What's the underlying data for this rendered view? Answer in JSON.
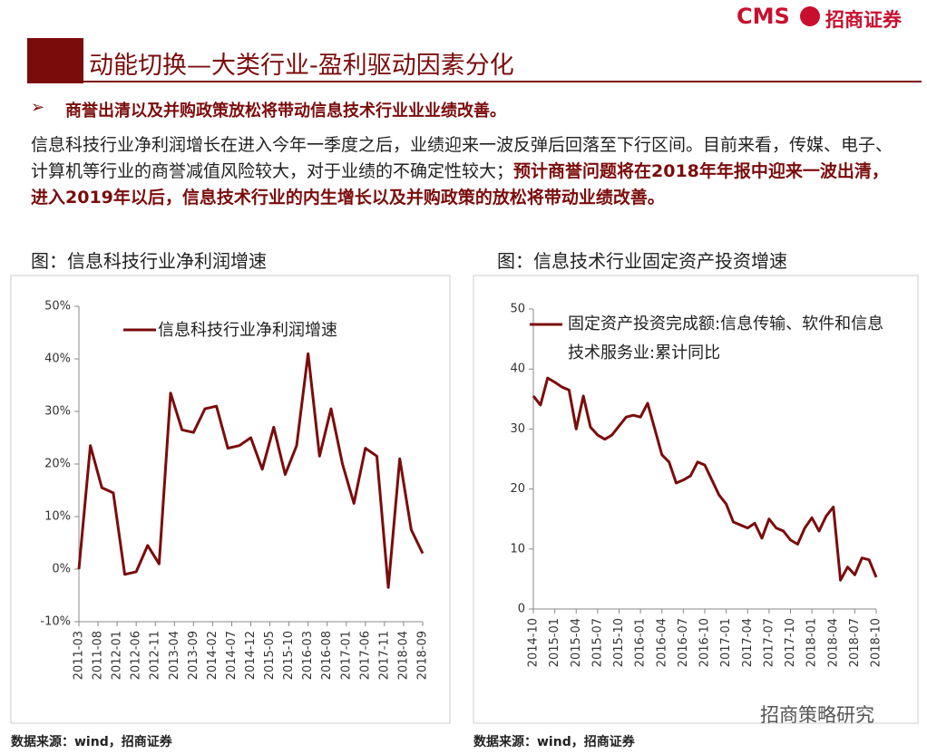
{
  "logo": {
    "mark": "CMS",
    "name": "招商证券"
  },
  "header": {
    "title": "动能切换—大类行业-盈利驱动因素分化"
  },
  "bullet": "商誉出清以及并购政策放松将带动信息技术行业业业绩改善。",
  "paragraph": {
    "normal": "信息科技行业净利润增长在进入今年一季度之后，业绩迎来一波反弹后回落至下行区间。目前来看，传媒、电子、计算机等行业的商誉减值风险较大，对于业绩的不确定性较大；",
    "bold": "预计商誉问题将在2018年年报中迎来一波出清，进入2019年以后，信息技术行业的内生增长以及并购政策的放松将带动业绩改善。"
  },
  "watermark": "招商策略研究",
  "chart_data": [
    {
      "type": "line",
      "caption": "图：信息科技行业净利润增速",
      "source": "数据来源：wind，招商证券",
      "x": [
        "2011-03",
        "2011-06",
        "2011-09",
        "2011-12",
        "2012-03",
        "2012-06",
        "2012-09",
        "2012-12",
        "2013-03",
        "2013-06",
        "2013-09",
        "2013-12",
        "2014-03",
        "2014-06",
        "2014-09",
        "2014-12",
        "2015-03",
        "2015-06",
        "2015-09",
        "2015-12",
        "2016-03",
        "2016-06",
        "2016-09",
        "2016-12",
        "2017-03",
        "2017-06",
        "2017-09",
        "2017-12",
        "2018-03",
        "2018-06",
        "2018-09"
      ],
      "series": [
        {
          "name": "信息科技行业净利润增速",
          "color": "#7b0c0c",
          "values": [
            0,
            23.5,
            15.5,
            14.5,
            -1,
            -0.5,
            4.5,
            1,
            33.5,
            26.5,
            26,
            30.5,
            31,
            23,
            23.5,
            25,
            19,
            27,
            18,
            23.5,
            41,
            21.5,
            30.5,
            20,
            12.5,
            23,
            21.5,
            -3.5,
            21,
            7.5,
            3
          ]
        }
      ],
      "xlim": [
        "2011-03",
        "2018-09"
      ],
      "xticks": [
        "2011-03",
        "2011-08",
        "2012-01",
        "2012-06",
        "2012-11",
        "2013-04",
        "2013-09",
        "2014-02",
        "2014-07",
        "2014-12",
        "2015-05",
        "2015-10",
        "2016-03",
        "2016-08",
        "2017-01",
        "2017-06",
        "2017-11",
        "2018-04",
        "2018-09"
      ],
      "ylim": [
        -10,
        50
      ],
      "yticks": [
        {
          "value": -10,
          "label": "-10%"
        },
        {
          "value": 0,
          "label": "0%"
        },
        {
          "value": 10,
          "label": "10%"
        },
        {
          "value": 20,
          "label": "20%"
        },
        {
          "value": 30,
          "label": "30%"
        },
        {
          "value": 40,
          "label": "40%"
        },
        {
          "value": 50,
          "label": "50%"
        }
      ],
      "grid": false,
      "legend": "top-left"
    },
    {
      "type": "line",
      "caption": "图：信息技术行业固定资产投资增速",
      "source": "数据来源：wind，招商证券",
      "x": [
        "2014-10",
        "2014-11",
        "2014-12",
        "2015-01",
        "2015-02",
        "2015-03",
        "2015-04",
        "2015-05",
        "2015-06",
        "2015-07",
        "2015-08",
        "2015-09",
        "2015-10",
        "2015-11",
        "2015-12",
        "2016-01",
        "2016-02",
        "2016-03",
        "2016-04",
        "2016-05",
        "2016-06",
        "2016-07",
        "2016-08",
        "2016-09",
        "2016-10",
        "2016-11",
        "2016-12",
        "2017-01",
        "2017-02",
        "2017-03",
        "2017-04",
        "2017-05",
        "2017-06",
        "2017-07",
        "2017-08",
        "2017-09",
        "2017-10",
        "2017-11",
        "2017-12",
        "2018-01",
        "2018-02",
        "2018-03",
        "2018-04",
        "2018-05",
        "2018-06",
        "2018-07",
        "2018-08",
        "2018-09",
        "2018-10"
      ],
      "series": [
        {
          "name": "固定资产投资完成额:信息传输、软件和信息技术服务业:累计同比",
          "color": "#7b0c0c",
          "values": [
            35.5,
            34,
            38.5,
            37.8,
            37,
            36.5,
            30,
            35.5,
            30.3,
            29,
            28.3,
            29,
            30.5,
            32,
            32.3,
            32,
            34.3,
            30,
            25.7,
            24.5,
            21,
            21.5,
            22.2,
            24.5,
            24,
            21.5,
            19,
            17.5,
            14.5,
            14,
            13.5,
            14.3,
            11.8,
            15,
            13.5,
            13,
            11.5,
            10.8,
            13.5,
            15.2,
            13,
            15.5,
            17,
            4.8,
            7,
            5.7,
            8.5,
            8.2,
            5.3
          ]
        }
      ],
      "xlim": [
        "2014-10",
        "2018-10"
      ],
      "xticks": [
        "2014-10",
        "2015-01",
        "2015-04",
        "2015-07",
        "2015-10",
        "2016-01",
        "2016-04",
        "2016-07",
        "2016-10",
        "2017-01",
        "2017-04",
        "2017-07",
        "2017-10",
        "2018-01",
        "2018-04",
        "2018-07",
        "2018-10"
      ],
      "ylim": [
        0,
        50
      ],
      "yticks": [
        0,
        10,
        20,
        30,
        40,
        50
      ],
      "grid": false,
      "legend": "top-left"
    }
  ]
}
